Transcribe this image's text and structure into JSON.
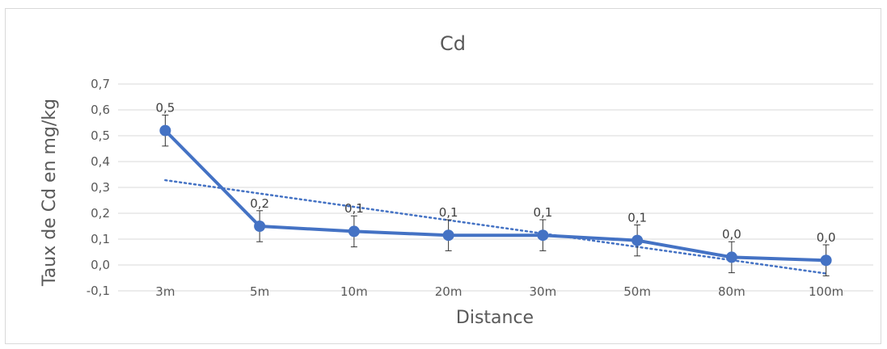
{
  "chart_data": {
    "type": "line",
    "title": "Cd",
    "xlabel": "Distance",
    "ylabel": "Taux de Cd en mg/kg",
    "categories": [
      "3m",
      "5m",
      "10m",
      "20m",
      "30m",
      "50m",
      "80m",
      "100m"
    ],
    "ylim": [
      -0.1,
      0.7
    ],
    "yticks": [
      "-0,1",
      "0,0",
      "0,1",
      "0,2",
      "0,3",
      "0,4",
      "0,5",
      "0,6",
      "0,7"
    ],
    "grid": true,
    "series": [
      {
        "values": [
          0.52,
          0.15,
          0.13,
          0.115,
          0.115,
          0.095,
          0.03,
          0.018
        ],
        "error": [
          0.06,
          0.06,
          0.06,
          0.06,
          0.06,
          0.06,
          0.06,
          0.06
        ],
        "data_labels": [
          "0,5",
          "0,2",
          "0,1",
          "0,1",
          "0,1",
          "0,1",
          "0,0",
          "0,0"
        ],
        "color": "#4472c4"
      }
    ],
    "trendline": {
      "style": "dotted",
      "kind": "linear",
      "start_value": 0.328,
      "end_value": -0.033,
      "color": "#4472c4"
    }
  }
}
